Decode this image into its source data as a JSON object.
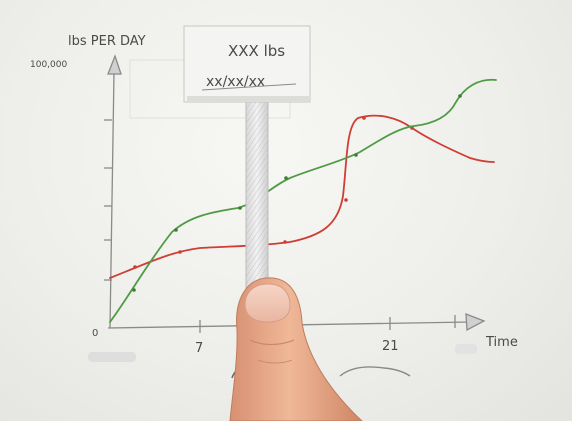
{
  "y_axis_title": "lbs PER DAY",
  "y_axis_max_label": "100,000",
  "x_axis_title": "Time",
  "x_ticks": [
    "7",
    "21"
  ],
  "sign": {
    "line1": "XXX lbs",
    "line2": "xx/xx/xx"
  },
  "colors": {
    "green_line": "#4f9a45",
    "red_line": "#cf3d33",
    "pencil": "#8a8a8a",
    "skin": "#e6a783"
  }
}
